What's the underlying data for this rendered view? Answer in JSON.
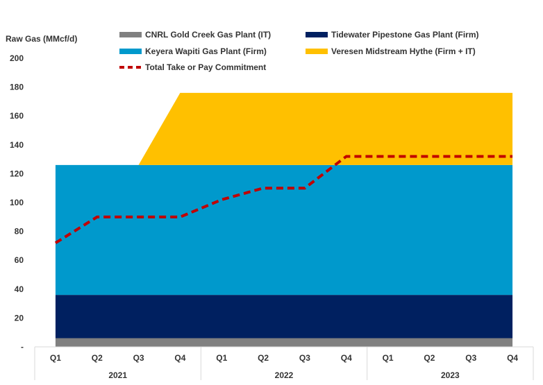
{
  "chart_data": {
    "type": "area",
    "ylabel": "Raw Gas (MMcf/d)",
    "ylim": [
      0,
      200
    ],
    "yticks": [
      0,
      20,
      40,
      60,
      80,
      100,
      120,
      140,
      160,
      180,
      200
    ],
    "ytick_labels": [
      "-",
      "20",
      "40",
      "60",
      "80",
      "100",
      "120",
      "140",
      "160",
      "180",
      "200"
    ],
    "grid": false,
    "legend_placement": "top",
    "categories": [
      "Q1",
      "Q2",
      "Q3",
      "Q4",
      "Q1",
      "Q2",
      "Q3",
      "Q4",
      "Q1",
      "Q2",
      "Q3",
      "Q4"
    ],
    "groups": [
      {
        "label": "2021",
        "count": 4
      },
      {
        "label": "2022",
        "count": 4
      },
      {
        "label": "2023",
        "count": 4
      }
    ],
    "stacked": true,
    "series": [
      {
        "name": "CNRL Gold Creek Gas Plant (IT)",
        "color": "#808080",
        "type": "area",
        "values": [
          6,
          6,
          6,
          6,
          6,
          6,
          6,
          6,
          6,
          6,
          6,
          6
        ]
      },
      {
        "name": "Tidewater Pipestone Gas Plant (Firm)",
        "color": "#002060",
        "type": "area",
        "values": [
          30,
          30,
          30,
          30,
          30,
          30,
          30,
          30,
          30,
          30,
          30,
          30
        ]
      },
      {
        "name": "Keyera Wapiti Gas Plant (Firm)",
        "color": "#0099CC",
        "type": "area",
        "values": [
          90,
          90,
          90,
          90,
          90,
          90,
          90,
          90,
          90,
          90,
          90,
          90
        ]
      },
      {
        "name": "Veresen Midstream Hythe (Firm + IT)",
        "color": "#FFC000",
        "type": "area",
        "values": [
          0,
          0,
          0,
          50,
          50,
          50,
          50,
          50,
          50,
          50,
          50,
          50
        ]
      },
      {
        "name": "Total Take or Pay Commitment",
        "color": "#C00000",
        "type": "line",
        "dashed": true,
        "values": [
          72,
          90,
          90,
          90,
          102,
          110,
          110,
          132,
          132,
          132,
          132,
          132
        ]
      }
    ]
  }
}
